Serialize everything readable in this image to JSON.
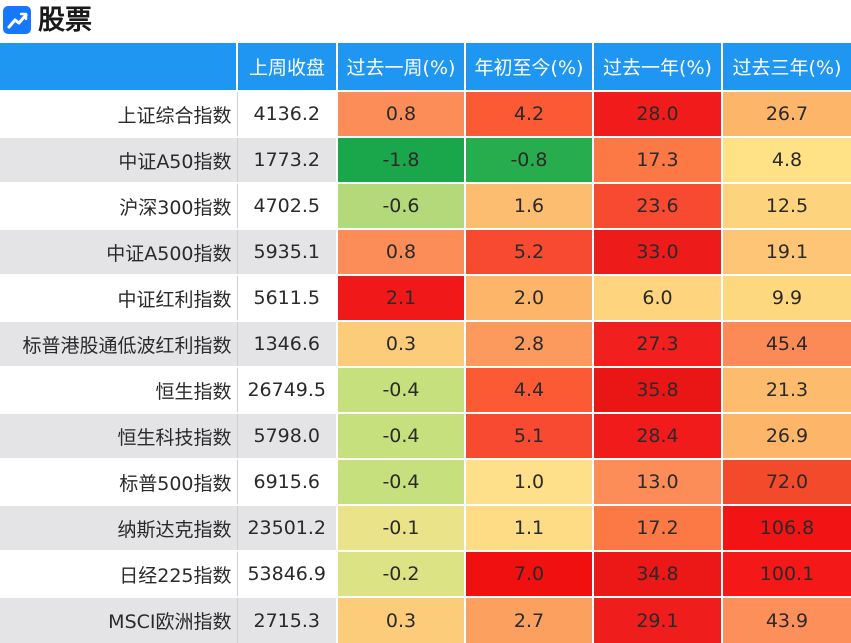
{
  "header": {
    "icon": "trend-chart-icon",
    "title": "股票"
  },
  "table": {
    "columns": [
      "",
      "上周收盘",
      "过去一周(%)",
      "年初至今(%)",
      "过去一年(%)",
      "过去三年(%)"
    ],
    "rows": [
      {
        "name": "上证综合指数",
        "close": "4136.2",
        "values": [
          "0.8",
          "4.2",
          "28.0",
          "26.7"
        ],
        "colors": [
          "#fc8d59",
          "#fb5a35",
          "#f21b1b",
          "#fdb56a"
        ]
      },
      {
        "name": "中证A50指数",
        "close": "1773.2",
        "values": [
          "-1.8",
          "-0.8",
          "17.3",
          "4.8"
        ],
        "colors": [
          "#1aa64a",
          "#28ad4e",
          "#fc7845",
          "#fee285"
        ]
      },
      {
        "name": "沪深300指数",
        "close": "4702.5",
        "values": [
          "-0.6",
          "1.6",
          "23.6",
          "12.5"
        ],
        "colors": [
          "#b3d97a",
          "#fdbd70",
          "#f84a30",
          "#fed37d"
        ]
      },
      {
        "name": "中证A500指数",
        "close": "5935.1",
        "values": [
          "0.8",
          "5.2",
          "33.0",
          "19.1"
        ],
        "colors": [
          "#fc8d59",
          "#f84a30",
          "#ee1b1b",
          "#fdc575"
        ]
      },
      {
        "name": "中证红利指数",
        "close": "5611.5",
        "values": [
          "2.1",
          "2.0",
          "6.0",
          "9.9"
        ],
        "colors": [
          "#f01818",
          "#fdb56a",
          "#fed47e",
          "#fed87f"
        ]
      },
      {
        "name": "标普港股通低波红利指数",
        "close": "1346.6",
        "values": [
          "0.3",
          "2.8",
          "27.3",
          "45.4"
        ],
        "colors": [
          "#fdcc7a",
          "#fc9a5e",
          "#f21f1f",
          "#fc8a57"
        ]
      },
      {
        "name": "恒生指数",
        "close": "26749.5",
        "values": [
          "-0.4",
          "4.4",
          "35.8",
          "21.3"
        ],
        "colors": [
          "#c6e07e",
          "#fb5a35",
          "#ea1616",
          "#fdbb6d"
        ]
      },
      {
        "name": "恒生科技指数",
        "close": "5798.0",
        "values": [
          "-0.4",
          "5.1",
          "28.4",
          "26.9"
        ],
        "colors": [
          "#c6e07e",
          "#f84a30",
          "#f21b1b",
          "#fdb56a"
        ]
      },
      {
        "name": "标普500指数",
        "close": "6915.6",
        "values": [
          "-0.4",
          "1.0",
          "13.0",
          "72.0"
        ],
        "colors": [
          "#c6e07e",
          "#fee08b",
          "#fc8d59",
          "#f24a2a"
        ]
      },
      {
        "name": "纳斯达克指数",
        "close": "23501.2",
        "values": [
          "-0.1",
          "1.1",
          "17.2",
          "106.8"
        ],
        "colors": [
          "#ebe38a",
          "#fedb85",
          "#fc7845",
          "#f21414"
        ]
      },
      {
        "name": "日经225指数",
        "close": "53846.9",
        "values": [
          "-0.2",
          "7.0",
          "34.8",
          "100.1"
        ],
        "colors": [
          "#dce385",
          "#f01010",
          "#ec1717",
          "#f41818"
        ]
      },
      {
        "name": "MSCI欧洲指数",
        "close": "2715.3",
        "values": [
          "0.3",
          "2.7",
          "29.1",
          "43.9"
        ],
        "colors": [
          "#fdcc7a",
          "#fca060",
          "#f01d1d",
          "#fc8f5a"
        ]
      }
    ]
  }
}
